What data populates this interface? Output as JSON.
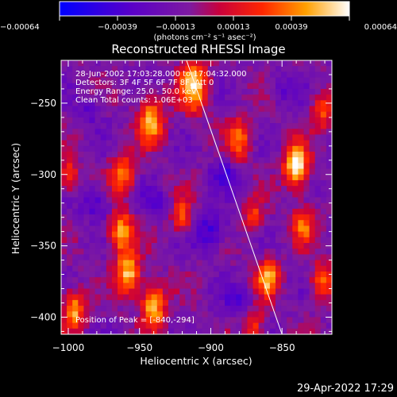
{
  "chart_data": {
    "type": "heatmap",
    "title": "Reconstructed RHESSI Image",
    "xlabel": "Heliocentric X (arcsec)",
    "ylabel": "Heliocentric Y (arcsec)",
    "xlim": [
      -1005,
      -815
    ],
    "ylim": [
      -412,
      -220
    ],
    "x_ticks": [
      -1000,
      -950,
      -900,
      -850
    ],
    "y_ticks": [
      -400,
      -350,
      -300,
      -250
    ],
    "colorbar": {
      "min": -0.00064,
      "max": 0.00064,
      "ticks": [
        "-0.00064",
        "-0.00039",
        "-0.00013",
        "0.00013",
        "0.00039",
        "0.00064"
      ],
      "unit_label": "(photons cm⁻² s⁻¹ asec⁻²)"
    },
    "grid": false,
    "limb_line": {
      "x": [
        -917,
        -850
      ],
      "y": [
        -220,
        -412
      ]
    },
    "info_lines": [
      "28-Jun-2002 17:03:28.000 to 17:04:32.000",
      "Detectors: 3F 4F 5F 6F 7F 8F, Att 0",
      "Energy Range: 25.0 - 50.0 keV",
      "Clean     Total counts: 1.06E+03"
    ],
    "peak_label": "Position of Peak = [-840,-294]",
    "peak": {
      "x": -840,
      "y": -294
    },
    "grid_size": [
      48,
      48
    ],
    "hotspots": [
      {
        "x": -912,
        "y": -238,
        "amp": 1.0,
        "r": 12
      },
      {
        "x": -942,
        "y": -262,
        "amp": 0.9,
        "r": 11
      },
      {
        "x": -962,
        "y": -300,
        "amp": 0.8,
        "r": 10
      },
      {
        "x": -963,
        "y": -340,
        "amp": 0.9,
        "r": 10
      },
      {
        "x": -958,
        "y": -370,
        "amp": 1.0,
        "r": 10
      },
      {
        "x": -940,
        "y": -392,
        "amp": 1.0,
        "r": 10
      },
      {
        "x": -996,
        "y": -395,
        "amp": 0.9,
        "r": 9
      },
      {
        "x": -1000,
        "y": -300,
        "amp": 0.6,
        "r": 8
      },
      {
        "x": -920,
        "y": -330,
        "amp": 0.7,
        "r": 8
      },
      {
        "x": -880,
        "y": -275,
        "amp": 0.7,
        "r": 10
      },
      {
        "x": -870,
        "y": -330,
        "amp": 0.6,
        "r": 8
      },
      {
        "x": -860,
        "y": -372,
        "amp": 0.9,
        "r": 9
      },
      {
        "x": -840,
        "y": -294,
        "amp": 1.2,
        "r": 10
      },
      {
        "x": -835,
        "y": -335,
        "amp": 0.7,
        "r": 9
      },
      {
        "x": -822,
        "y": -375,
        "amp": 0.7,
        "r": 9
      },
      {
        "x": -822,
        "y": -255,
        "amp": 0.6,
        "r": 9
      },
      {
        "x": -870,
        "y": -405,
        "amp": 0.6,
        "r": 8
      }
    ],
    "coldspots": [
      {
        "x": -980,
        "y": -320,
        "amp": 0.7,
        "r": 12
      },
      {
        "x": -940,
        "y": -320,
        "amp": 0.6,
        "r": 10
      },
      {
        "x": -900,
        "y": -340,
        "amp": 0.9,
        "r": 12
      },
      {
        "x": -890,
        "y": -300,
        "amp": 0.8,
        "r": 10
      },
      {
        "x": -880,
        "y": -390,
        "amp": 0.7,
        "r": 10
      },
      {
        "x": -985,
        "y": -255,
        "amp": 0.5,
        "r": 10
      },
      {
        "x": -850,
        "y": -240,
        "amp": 0.5,
        "r": 10
      }
    ],
    "timestamp": "29-Apr-2022 17:29"
  }
}
